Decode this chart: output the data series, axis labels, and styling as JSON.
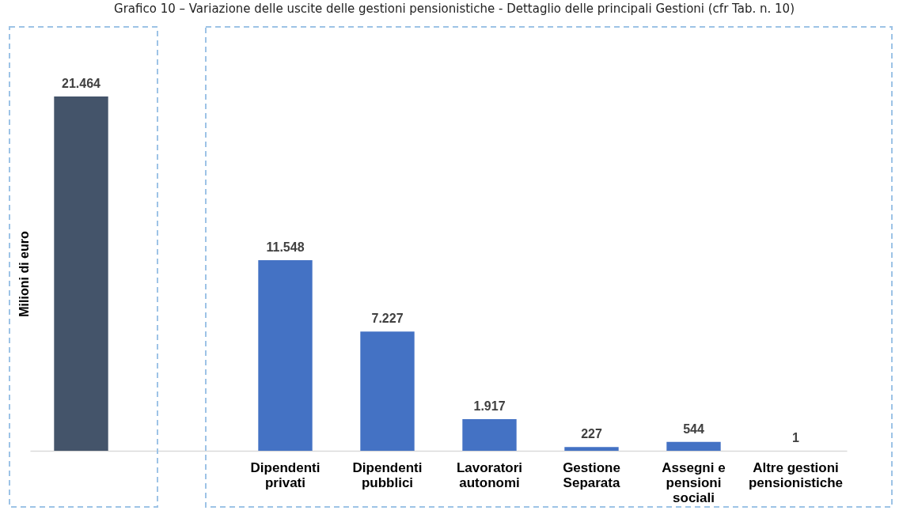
{
  "chart_data": {
    "type": "bar",
    "title": "Grafico 10 – Variazione delle uscite delle gestioni pensionistiche - Dettaglio delle principali Gestioni (cfr Tab. n. 10)",
    "ylabel": "Milioni di euro",
    "categories": [
      null,
      null,
      "Dipendenti privati",
      "Dipendenti pubblici",
      "Lavoratori autonomi",
      "Gestione Separata",
      "Assegni e pensioni sociali",
      "Altre gestioni pensionistiche"
    ],
    "values": [
      21464,
      null,
      11548,
      7227,
      1917,
      227,
      544,
      1
    ],
    "colors": [
      "#44546a",
      null,
      "#4472c4",
      "#4472c4",
      "#4472c4",
      "#4472c4",
      "#4472c4",
      "#4472c4"
    ],
    "value_labels": [
      "21.464",
      null,
      "11.548",
      "7.227",
      "1.917",
      "227",
      "544",
      "1"
    ],
    "tick_labels": "x"
  }
}
